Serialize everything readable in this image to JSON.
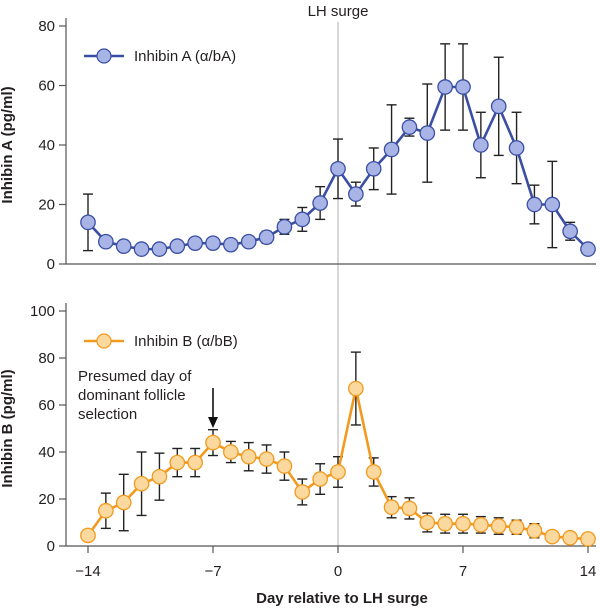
{
  "figure": {
    "top_label": "LH surge",
    "xlabel": "Day relative to LH surge",
    "annotation": [
      "Presumed day of",
      "dominant follicle",
      "selection"
    ],
    "annotation_day": -7,
    "marker_day": 0
  },
  "chart_data": [
    {
      "type": "line",
      "name": "inhibin-a",
      "title": "",
      "xlabel": "Day relative to LH surge",
      "ylabel": "Inhibin A (pg/ml)",
      "xlim": [
        -14,
        14
      ],
      "ylim": [
        0,
        80
      ],
      "xticks": [
        -14,
        -7,
        0,
        7,
        14
      ],
      "xtick_labels": [
        "−14",
        "−7",
        "0",
        "7",
        "14"
      ],
      "yticks": [
        0,
        20,
        40,
        60,
        80
      ],
      "legend": "top-left",
      "color": "#3a4fa3",
      "marker_fill": "#a9b4e6",
      "series": [
        {
          "name": "Inhibin A (α/bA)",
          "x": [
            -14,
            -13,
            -12,
            -11,
            -10,
            -9,
            -8,
            -7,
            -6,
            -5,
            -4,
            -3,
            -2,
            -1,
            0,
            1,
            2,
            3,
            4,
            5,
            6,
            7,
            8,
            9,
            10,
            11,
            12,
            13,
            14
          ],
          "values": [
            14,
            7.5,
            6,
            5,
            5,
            6,
            7,
            7,
            6.5,
            7.5,
            9,
            12.5,
            15,
            20.5,
            32,
            23.5,
            32,
            38.5,
            46,
            44,
            59.5,
            59.5,
            40,
            53,
            39,
            20,
            20,
            11,
            5
          ],
          "err": [
            9.5,
            1.5,
            1,
            1,
            1,
            1,
            1,
            1,
            1,
            1.5,
            2,
            2.5,
            4,
            5.5,
            10,
            4,
            7,
            15,
            3,
            16.5,
            14.5,
            14.5,
            11,
            16.5,
            12,
            6.5,
            14.5,
            3,
            1
          ]
        }
      ]
    },
    {
      "type": "line",
      "name": "inhibin-b",
      "title": "",
      "xlabel": "Day relative to LH surge",
      "ylabel": "Inhibin B (pg/ml)",
      "xlim": [
        -14,
        14
      ],
      "ylim": [
        0,
        100
      ],
      "xticks": [
        -14,
        -7,
        0,
        7,
        14
      ],
      "xtick_labels": [
        "−14",
        "−7",
        "0",
        "7",
        "14"
      ],
      "yticks": [
        0,
        20,
        40,
        60,
        80,
        100
      ],
      "legend": "top-left",
      "color": "#f29a1f",
      "marker_fill": "#fbd99e",
      "series": [
        {
          "name": "Inhibin B (α/bB)",
          "x": [
            -14,
            -13,
            -12,
            -11,
            -10,
            -9,
            -8,
            -7,
            -6,
            -5,
            -4,
            -3,
            -2,
            -1,
            0,
            1,
            2,
            3,
            4,
            5,
            6,
            7,
            8,
            9,
            10,
            11,
            12,
            13,
            14
          ],
          "values": [
            4.5,
            15,
            18.5,
            26.5,
            29.5,
            35.5,
            35.5,
            44,
            40,
            38,
            37,
            34,
            23,
            28.5,
            31.5,
            67,
            31.5,
            16.5,
            16,
            10,
            9.5,
            9.5,
            9,
            8.5,
            8,
            6.5,
            4,
            3.5,
            3
          ],
          "err": [
            1.5,
            7.5,
            12,
            13.5,
            10,
            6,
            6,
            5.5,
            4.5,
            6,
            6,
            6,
            5.5,
            6.5,
            6.5,
            15.5,
            6,
            4.5,
            4.5,
            4,
            4,
            4,
            3.5,
            3.5,
            3,
            3,
            2,
            1.5,
            1.5
          ]
        }
      ]
    }
  ]
}
